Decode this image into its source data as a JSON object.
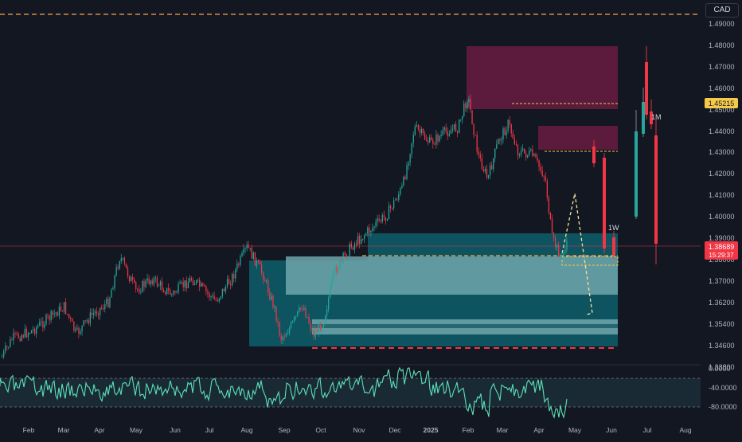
{
  "chart": {
    "currency_label": "CAD",
    "colors": {
      "background": "#131722",
      "up": "#26a69a",
      "down": "#f23645",
      "rsi_line": "#5ce0b8",
      "zone_teal": "#0e5360",
      "zone_light": "#6fa6aa",
      "zone_supply": "#5c1a3c",
      "orange_dash": "#f7a94b"
    },
    "price_axis": {
      "ticks": [
        "1.49000",
        "1.48000",
        "1.47000",
        "1.46000",
        "1.45000",
        "1.44000",
        "1.43000",
        "1.42000",
        "1.41000",
        "1.40000",
        "1.39000",
        "1.38000",
        "1.37000",
        "1.36200",
        "1.35400",
        "1.34600",
        "1.33800"
      ],
      "tags": [
        {
          "name": "level-tag",
          "value": "1.45215",
          "color": "#f7c948",
          "text_color": "#131722"
        },
        {
          "name": "current-price-tag",
          "value": "1.38689",
          "sub": "15:29:37",
          "color": "#f23645",
          "text_color": "#ffffff"
        }
      ]
    },
    "rsi_axis": {
      "ticks": [
        "0.0000",
        "-40.0000",
        "-80.0000"
      ]
    },
    "time_axis": {
      "labels": [
        "Feb",
        "Mar",
        "Apr",
        "May",
        "Jun",
        "Jul",
        "Aug",
        "Sep",
        "Oct",
        "Nov",
        "Dec",
        "2025",
        "Feb",
        "Mar",
        "Apr",
        "May",
        "Jun",
        "Jul",
        "Aug"
      ]
    },
    "annotations": [
      "1W",
      "1M"
    ]
  }
}
